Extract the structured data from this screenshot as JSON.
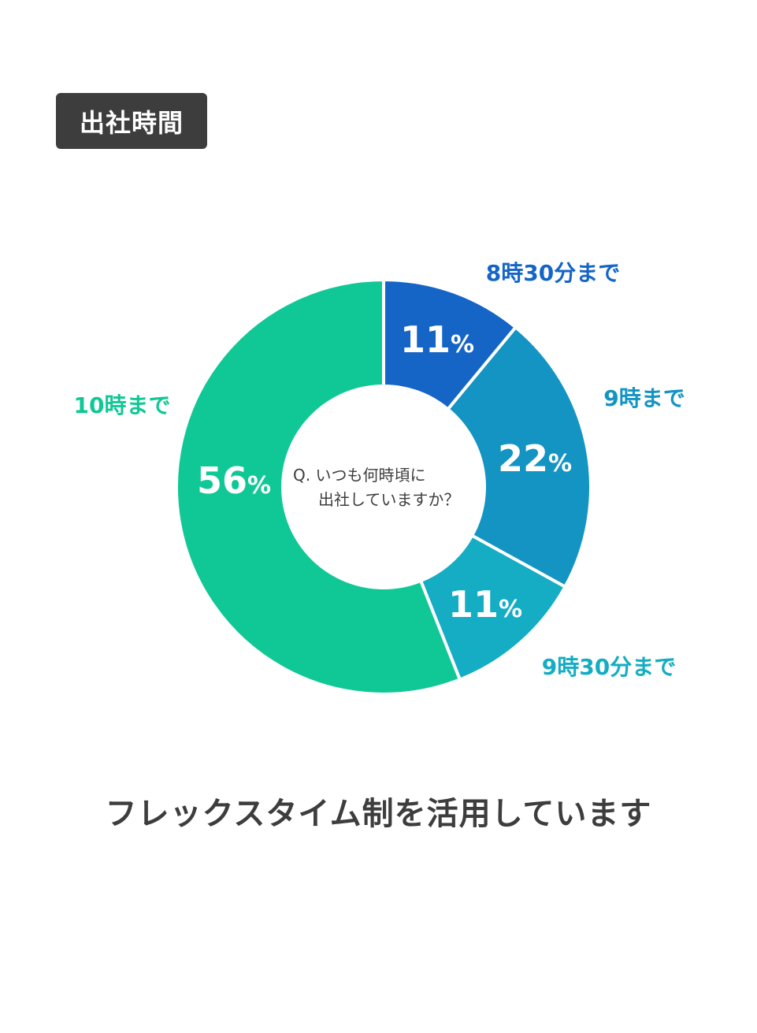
{
  "header": {
    "title": "出社時間"
  },
  "chart_data": {
    "type": "pie",
    "donut": true,
    "center_text": [
      "Q. いつも何時頃に",
      "出社していますか？"
    ],
    "categories": [
      "8時30分まで",
      "9時まで",
      "9時30分まで",
      "10時まで"
    ],
    "values": [
      11,
      22,
      11,
      56
    ],
    "value_labels": [
      "11%",
      "22%",
      "11%",
      "56%"
    ],
    "colors": [
      "#1565c7",
      "#1494c2",
      "#14adc4",
      "#10c896"
    ]
  },
  "footer": {
    "caption": "フレックスタイム制を活用しています"
  }
}
